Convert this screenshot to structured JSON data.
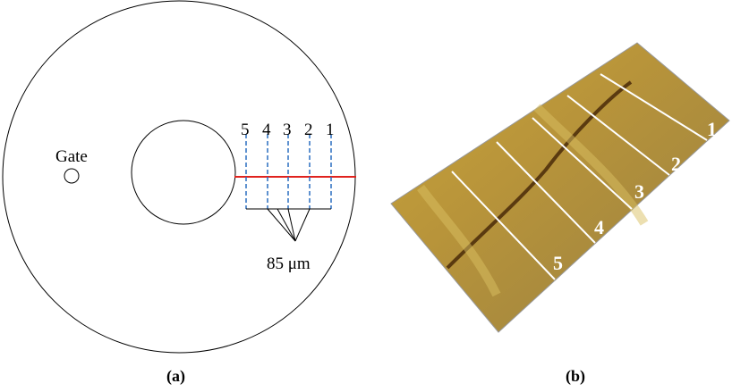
{
  "panel_a": {
    "gate_label": "Gate",
    "line_labels": [
      "5",
      "4",
      "3",
      "2",
      "1"
    ],
    "spacing_label": "85 μm",
    "caption": "(a)"
  },
  "panel_b": {
    "line_labels": [
      "1",
      "2",
      "3",
      "4",
      "5"
    ],
    "caption": "(b)"
  }
}
